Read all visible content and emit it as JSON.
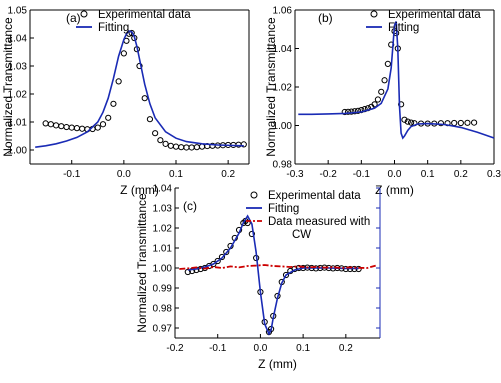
{
  "chart_data": [
    {
      "panel": "(a)",
      "type": "scatter",
      "xlabel": "Z (mm)",
      "ylabel": "Normalized Transmittance",
      "xlim": [
        -0.18,
        0.24
      ],
      "ylim": [
        0.995,
        1.05
      ],
      "xticks": [
        "-0.2",
        "-0.1",
        "0.0",
        "0.1",
        "0.2"
      ],
      "yticks": [
        "1.00",
        "1.01",
        "1.02",
        "1.03",
        "1.04",
        "1.05"
      ],
      "legend_position": "top-left",
      "series": [
        {
          "name": "Experimental data",
          "style": "open-circles",
          "color": "#000000",
          "x": [
            -0.15,
            -0.14,
            -0.13,
            -0.12,
            -0.11,
            -0.1,
            -0.09,
            -0.08,
            -0.07,
            -0.06,
            -0.05,
            -0.04,
            -0.03,
            -0.02,
            -0.01,
            0.0,
            0.005,
            0.01,
            0.015,
            0.02,
            0.025,
            0.03,
            0.04,
            0.05,
            0.06,
            0.07,
            0.08,
            0.09,
            0.1,
            0.11,
            0.12,
            0.13,
            0.14,
            0.15,
            0.16,
            0.17,
            0.18,
            0.19,
            0.2,
            0.21,
            0.22,
            0.23
          ],
          "y": [
            1.0095,
            1.0092,
            1.0088,
            1.0085,
            1.0082,
            1.008,
            1.0078,
            1.0076,
            1.0074,
            1.0075,
            1.008,
            1.0092,
            1.0115,
            1.0165,
            1.0245,
            1.0345,
            1.039,
            1.0415,
            1.0418,
            1.04,
            1.036,
            1.03,
            1.0185,
            1.011,
            1.006,
            1.0035,
            1.0022,
            1.0015,
            1.0012,
            1.001,
            1.0009,
            1.0009,
            1.001,
            1.0012,
            1.0014,
            1.0015,
            1.0016,
            1.0017,
            1.0018,
            1.0018,
            1.0019,
            1.002
          ]
        },
        {
          "name": "Fitting",
          "style": "line",
          "color": "#1a2bb5",
          "x": [
            -0.17,
            -0.15,
            -0.13,
            -0.11,
            -0.09,
            -0.07,
            -0.05,
            -0.04,
            -0.03,
            -0.02,
            -0.01,
            0.0,
            0.005,
            0.01,
            0.015,
            0.02,
            0.025,
            0.03,
            0.04,
            0.05,
            0.06,
            0.08,
            0.1,
            0.12,
            0.15,
            0.18,
            0.21,
            0.23
          ],
          "y": [
            1.001,
            1.0015,
            1.0022,
            1.0032,
            1.0045,
            1.0065,
            1.01,
            1.0135,
            1.0185,
            1.0255,
            1.0335,
            1.0395,
            1.0415,
            1.0425,
            1.0422,
            1.0405,
            1.037,
            1.0325,
            1.0235,
            1.0165,
            1.0115,
            1.0065,
            1.0042,
            1.003,
            1.0022,
            1.0018,
            1.0016,
            1.0015
          ]
        }
      ]
    },
    {
      "panel": "(b)",
      "type": "scatter",
      "xlabel": "Z (mm)",
      "ylabel": "Normalized Transmittance",
      "xlim": [
        -0.3,
        0.3
      ],
      "ylim": [
        0.98,
        1.06
      ],
      "xticks": [
        "-0.3",
        "-0.2",
        "-0.1",
        "0.0",
        "0.1",
        "0.2",
        "0.3"
      ],
      "yticks": [
        "0.98",
        "1.00",
        "1.02",
        "1.04",
        "1.06"
      ],
      "legend_position": "top-right",
      "series": [
        {
          "name": "Experimental data",
          "style": "open-circles",
          "color": "#000000",
          "x": [
            -0.15,
            -0.14,
            -0.13,
            -0.12,
            -0.11,
            -0.1,
            -0.09,
            -0.08,
            -0.07,
            -0.06,
            -0.05,
            -0.04,
            -0.03,
            -0.02,
            -0.01,
            0.0,
            0.005,
            0.01,
            0.02,
            0.03,
            0.04,
            0.05,
            0.06,
            0.08,
            0.1,
            0.12,
            0.14,
            0.16,
            0.18,
            0.2,
            0.22,
            0.24
          ],
          "y": [
            1.007,
            1.0071,
            1.0072,
            1.0074,
            1.0076,
            1.008,
            1.0085,
            1.009,
            1.0097,
            1.011,
            1.0135,
            1.0175,
            1.0235,
            1.032,
            1.042,
            1.049,
            1.048,
            1.04,
            1.011,
            1.003,
            1.002,
            1.0015,
            1.0012,
            1.001,
            1.001,
            1.001,
            1.0012,
            1.0012,
            1.0013,
            1.0013,
            1.0014,
            1.0015
          ]
        },
        {
          "name": "Fitting",
          "style": "line",
          "color": "#1a2bb5",
          "x": [
            -0.29,
            -0.25,
            -0.2,
            -0.15,
            -0.1,
            -0.06,
            -0.04,
            -0.02,
            -0.01,
            0.0,
            0.005,
            0.01,
            0.015,
            0.02,
            0.025,
            0.03,
            0.04,
            0.05,
            0.07,
            0.1,
            0.15,
            0.2,
            0.25,
            0.3
          ],
          "y": [
            1.0058,
            1.0058,
            1.006,
            1.0063,
            1.007,
            1.009,
            1.0115,
            1.019,
            1.03,
            1.052,
            1.054,
            1.04,
            1.01,
            0.996,
            0.9935,
            0.9945,
            0.9975,
            0.9995,
            1.0008,
            1.001,
            1.0005,
            0.999,
            0.9965,
            0.9935
          ]
        }
      ]
    },
    {
      "panel": "(c)",
      "type": "scatter",
      "xlabel": "Z (mm)",
      "ylabel": "Normalized Transmittance",
      "xlim": [
        -0.2,
        0.28
      ],
      "ylim": [
        0.965,
        1.04
      ],
      "xticks": [
        "-0.2",
        "-0.1",
        "0.0",
        "0.1",
        "0.2"
      ],
      "yticks": [
        "0.97",
        "0.98",
        "0.99",
        "1.00",
        "1.01",
        "1.02",
        "1.03",
        "1.04"
      ],
      "legend_position": "top-right",
      "series": [
        {
          "name": "Experimental data",
          "style": "open-circles",
          "color": "#000000",
          "x": [
            -0.17,
            -0.16,
            -0.15,
            -0.14,
            -0.13,
            -0.12,
            -0.11,
            -0.1,
            -0.09,
            -0.08,
            -0.07,
            -0.06,
            -0.05,
            -0.04,
            -0.035,
            -0.03,
            -0.02,
            -0.01,
            0.0,
            0.01,
            0.02,
            0.025,
            0.03,
            0.04,
            0.05,
            0.06,
            0.07,
            0.08,
            0.09,
            0.1,
            0.11,
            0.12,
            0.13,
            0.14,
            0.15,
            0.16,
            0.17,
            0.18,
            0.19,
            0.2,
            0.21,
            0.22,
            0.23
          ],
          "y": [
            0.998,
            0.9985,
            0.999,
            0.9995,
            1.0,
            1.001,
            1.002,
            1.0035,
            1.0055,
            1.008,
            1.011,
            1.015,
            1.019,
            1.0225,
            1.0235,
            1.0225,
            1.017,
            1.005,
            0.988,
            0.973,
            0.968,
            0.9695,
            0.976,
            0.986,
            0.993,
            0.9965,
            0.9985,
            0.9995,
            1.0,
            1.0,
            1.0002,
            1.0,
            0.9998,
            1.0,
            1.0002,
            1.0,
            0.9998,
            1.0,
            0.9998,
            0.9995,
            0.9995,
            0.9995,
            0.9995
          ]
        },
        {
          "name": "Fitting",
          "style": "line",
          "color": "#1a2bb5",
          "x": [
            -0.17,
            -0.15,
            -0.13,
            -0.11,
            -0.09,
            -0.07,
            -0.05,
            -0.04,
            -0.03,
            -0.02,
            -0.01,
            0.0,
            0.01,
            0.02,
            0.025,
            0.03,
            0.04,
            0.05,
            0.06,
            0.08,
            0.1,
            0.13,
            0.16,
            0.2,
            0.23
          ],
          "y": [
            0.999,
            0.9995,
            1.0005,
            1.002,
            1.005,
            1.01,
            1.0175,
            1.0225,
            1.026,
            1.022,
            1.008,
            0.988,
            0.972,
            0.967,
            0.969,
            0.975,
            0.985,
            0.9925,
            0.9965,
            0.999,
            1.0,
            1.0,
            1.0,
            0.9998,
            0.9998
          ]
        },
        {
          "name": "Data measured with CW",
          "style": "dash-dot",
          "color": "#cc0000",
          "x": [
            -0.19,
            -0.17,
            -0.15,
            -0.13,
            -0.11,
            -0.09,
            -0.07,
            -0.05,
            -0.03,
            -0.01,
            0.01,
            0.03,
            0.05,
            0.07,
            0.09,
            0.11,
            0.13,
            0.15,
            0.17,
            0.19,
            0.21,
            0.23,
            0.25,
            0.27
          ],
          "y": [
            0.9995,
            0.9998,
            1.0003,
            0.9997,
            1.0005,
            1.0,
            1.0008,
            1.0003,
            1.001,
            1.0012,
            1.0015,
            1.001,
            1.0008,
            1.0005,
            1.0008,
            1.0003,
            1.0005,
            1.0002,
            1.0004,
            1.0,
            1.0003,
            1.0001,
            1.0,
            1.0012
          ]
        }
      ]
    }
  ]
}
